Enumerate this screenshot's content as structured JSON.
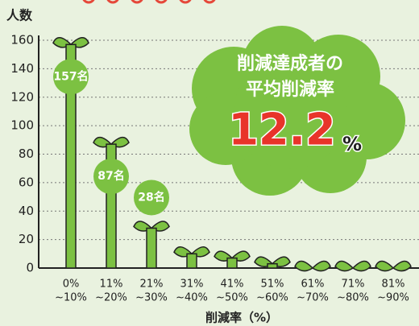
{
  "chart_data": {
    "type": "bar",
    "y_label": "人数",
    "x_label": "削減率（%）",
    "categories": [
      [
        "0%",
        "~10%"
      ],
      [
        "11%",
        "~20%"
      ],
      [
        "21%",
        "~30%"
      ],
      [
        "31%",
        "~40%"
      ],
      [
        "41%",
        "~50%"
      ],
      [
        "51%",
        "~60%"
      ],
      [
        "61%",
        "~70%"
      ],
      [
        "71%",
        "~80%"
      ],
      [
        "81%",
        "~90%"
      ]
    ],
    "values": [
      157,
      87,
      28,
      10,
      7,
      3,
      0,
      0,
      0
    ],
    "value_labels": [
      "157名",
      "87名",
      "28名",
      null,
      null,
      null,
      null,
      null,
      null
    ],
    "color": "#7cc142",
    "ylim": [
      0,
      160
    ],
    "yticks": [
      0,
      20,
      40,
      60,
      80,
      100,
      120,
      140,
      160
    ],
    "grid": true,
    "annotation": {
      "lines": [
        "削減達成者の",
        "平均削減率"
      ],
      "value": "12.2",
      "unit": "%"
    }
  }
}
